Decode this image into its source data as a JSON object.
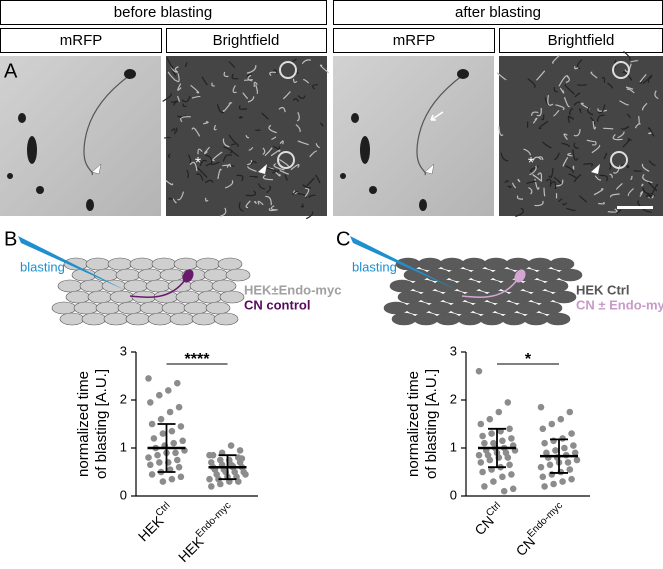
{
  "headers": [
    "before blasting",
    "after blasting"
  ],
  "subheaders": [
    "mRFP",
    "Brightfield",
    "mRFP",
    "Brightfield"
  ],
  "panel_labels": [
    "A",
    "B",
    "C"
  ],
  "image_marker": "*",
  "schematics": [
    {
      "needle_label": "blasting",
      "cell_color": "#cfcfcf",
      "neuron_color": "#6a1a6a",
      "lines": [
        {
          "text": "HEK±Endo-myc",
          "color": "#a0a0a0"
        },
        {
          "text": "CN control",
          "color": "#5a0a5a"
        }
      ]
    },
    {
      "needle_label": "blasting",
      "cell_color": "#5a5a5a",
      "neuron_color": "#d4a6d4",
      "lines": [
        {
          "text": "HEK Ctrl",
          "color": "#555555"
        },
        {
          "text": "CN ± Endo-myc",
          "color": "#c89ac8"
        }
      ]
    }
  ],
  "chart_data": [
    {
      "type": "strip",
      "ylabel": [
        "normalized time",
        "of blasting [A.U.]"
      ],
      "ylim": [
        0,
        3
      ],
      "yticks": [
        0,
        1,
        2,
        3
      ],
      "point_color": "#8c8c8c",
      "significance": "****",
      "groups": [
        {
          "label": "HEK",
          "label_sup": "Ctrl",
          "mean": 1.0,
          "sd": 0.5,
          "values": [
            2.45,
            2.35,
            2.2,
            2.1,
            1.95,
            1.85,
            1.75,
            1.6,
            1.5,
            1.45,
            1.35,
            1.3,
            1.2,
            1.15,
            1.1,
            1.05,
            1.0,
            0.95,
            0.9,
            0.9,
            0.85,
            0.8,
            0.75,
            0.7,
            0.7,
            0.65,
            0.6,
            0.55,
            0.5,
            0.45,
            0.4,
            0.35,
            0.3
          ]
        },
        {
          "label": "HEK",
          "label_sup": "Endo-myc",
          "mean": 0.6,
          "sd": 0.25,
          "values": [
            0.85,
            0.8,
            0.75,
            0.75,
            0.7,
            0.7,
            0.65,
            0.65,
            0.6,
            0.6,
            0.6,
            0.55,
            0.55,
            0.5,
            0.5,
            0.5,
            0.45,
            0.45,
            0.4,
            0.4,
            0.35,
            0.35,
            0.3,
            0.3,
            0.25,
            0.2,
            0.95,
            1.05,
            0.9,
            0.85,
            0.78,
            0.62
          ]
        }
      ]
    },
    {
      "type": "strip",
      "ylabel": [
        "normalized time",
        "of blasting [A.U.]"
      ],
      "ylim": [
        0,
        3
      ],
      "yticks": [
        0,
        1,
        2,
        3
      ],
      "point_color": "#8c8c8c",
      "significance": "*",
      "groups": [
        {
          "label": "CN",
          "label_sup": "Ctrl",
          "mean": 1.0,
          "sd": 0.4,
          "values": [
            2.6,
            1.95,
            1.75,
            1.6,
            1.5,
            1.4,
            1.35,
            1.3,
            1.25,
            1.2,
            1.15,
            1.1,
            1.1,
            1.05,
            1.0,
            1.0,
            0.95,
            0.95,
            0.9,
            0.9,
            0.85,
            0.85,
            0.8,
            0.8,
            0.75,
            0.7,
            0.65,
            0.6,
            0.55,
            0.5,
            0.45,
            0.4,
            0.3,
            0.2,
            0.15,
            0.1
          ]
        },
        {
          "label": "CN",
          "label_sup": "Endo-myc",
          "mean": 0.83,
          "sd": 0.35,
          "values": [
            1.85,
            1.75,
            1.6,
            1.5,
            1.4,
            1.3,
            1.2,
            1.15,
            1.1,
            1.05,
            1.0,
            0.95,
            0.9,
            0.9,
            0.85,
            0.8,
            0.8,
            0.75,
            0.7,
            0.7,
            0.65,
            0.6,
            0.55,
            0.5,
            0.45,
            0.4,
            0.35,
            0.3,
            0.25,
            0.2
          ]
        }
      ]
    }
  ]
}
